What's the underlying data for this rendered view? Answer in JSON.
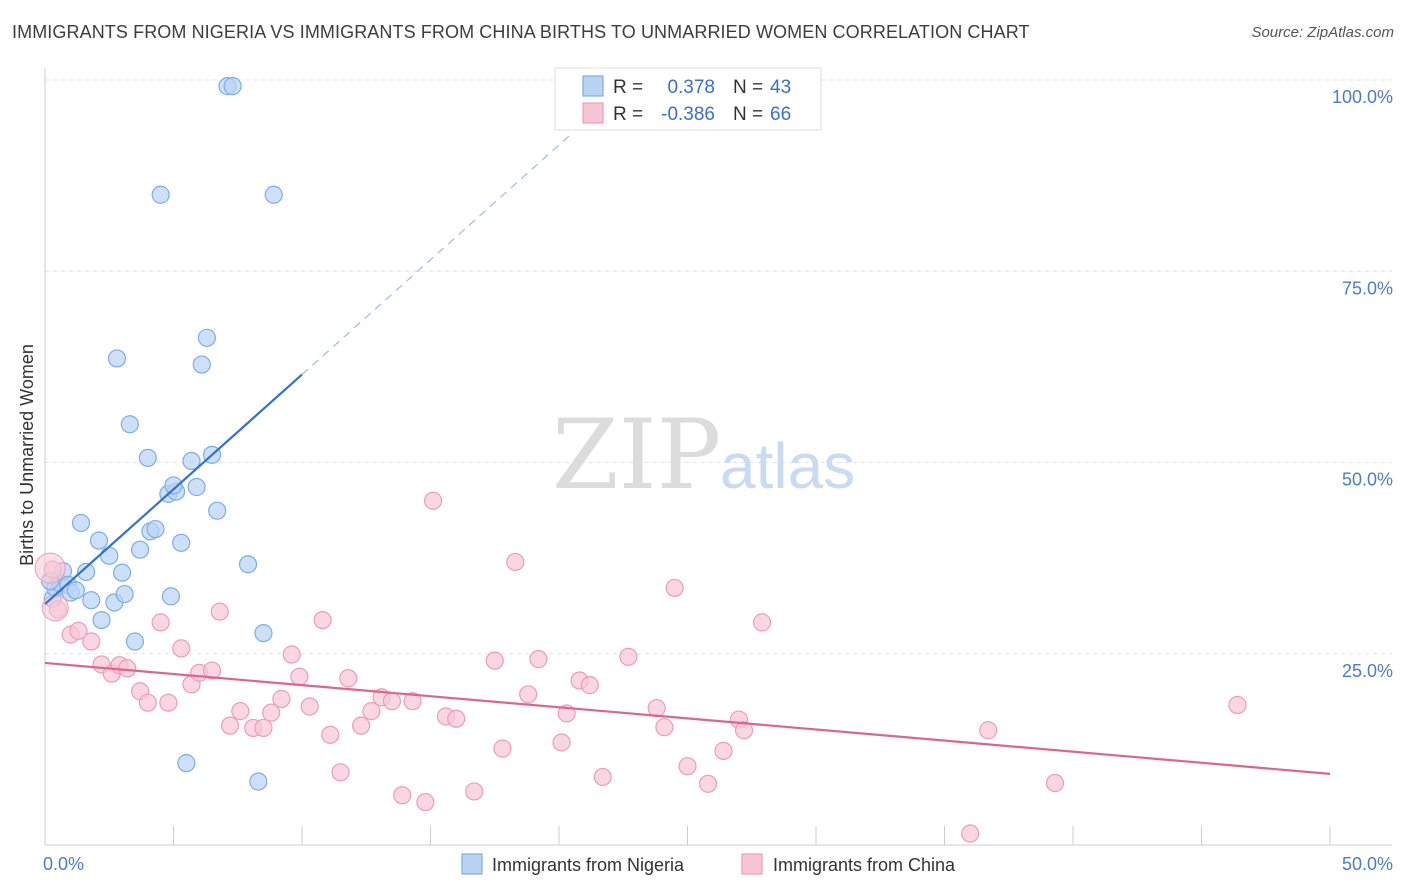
{
  "header": {
    "title": "IMMIGRANTS FROM NIGERIA VS IMMIGRANTS FROM CHINA BIRTHS TO UNMARRIED WOMEN CORRELATION CHART",
    "source": "Source: ZipAtlas.com"
  },
  "watermark": {
    "zip": "ZIP",
    "atlas": "atlas"
  },
  "legend": {
    "nigeria": {
      "r_label": "R =",
      "r_value": "0.378",
      "n_label": "N =",
      "n_value": "43"
    },
    "china": {
      "r_label": "R =",
      "r_value": "-0.386",
      "n_label": "N =",
      "n_value": "66"
    }
  },
  "chart_data": {
    "type": "scatter",
    "xlabel": "",
    "ylabel": "Births to Unmarried Women",
    "xlim": [
      0,
      50
    ],
    "ylim": [
      0,
      100
    ],
    "x_ticks": [
      {
        "value": 0,
        "label": "0.0%"
      },
      {
        "value": 50,
        "label": "50.0%"
      }
    ],
    "y_ticks": [
      {
        "value": 25,
        "label": "25.0%"
      },
      {
        "value": 50,
        "label": "50.0%"
      },
      {
        "value": 75,
        "label": "75.0%"
      },
      {
        "value": 100,
        "label": "100.0%"
      }
    ],
    "grid": true,
    "legend_position": "top-center",
    "series": [
      {
        "name": "Immigrants from Nigeria",
        "color": "#7aaee8",
        "fill": "#b9d3f3",
        "r": 0.378,
        "n": 43,
        "trend": {
          "x0": 0,
          "y0": 31.5,
          "x1": 10,
          "y1": 61.5,
          "dash_to_x": 20.5,
          "dash_to_y": 93
        },
        "points": [
          [
            0.3,
            32.2
          ],
          [
            0.4,
            33.6
          ],
          [
            0.6,
            34.2
          ],
          [
            0.7,
            35.8
          ],
          [
            0.9,
            34.0
          ],
          [
            1.0,
            33.0
          ],
          [
            1.2,
            33.3
          ],
          [
            1.4,
            42.1
          ],
          [
            1.6,
            35.7
          ],
          [
            1.8,
            32.0
          ],
          [
            2.1,
            39.8
          ],
          [
            2.2,
            29.4
          ],
          [
            2.5,
            37.8
          ],
          [
            2.7,
            31.7
          ],
          [
            2.8,
            63.6
          ],
          [
            3.0,
            35.6
          ],
          [
            3.1,
            32.8
          ],
          [
            3.3,
            55.0
          ],
          [
            3.5,
            26.6
          ],
          [
            3.7,
            38.6
          ],
          [
            4.0,
            50.6
          ],
          [
            4.1,
            41.0
          ],
          [
            4.3,
            41.3
          ],
          [
            4.5,
            85.0
          ],
          [
            4.8,
            45.9
          ],
          [
            4.9,
            32.5
          ],
          [
            5.1,
            46.2
          ],
          [
            5.0,
            47.0
          ],
          [
            5.3,
            39.5
          ],
          [
            5.5,
            10.7
          ],
          [
            5.7,
            50.2
          ],
          [
            5.9,
            46.8
          ],
          [
            6.1,
            62.8
          ],
          [
            6.3,
            66.3
          ],
          [
            6.5,
            51.0
          ],
          [
            6.7,
            43.7
          ],
          [
            7.1,
            99.2
          ],
          [
            7.3,
            99.2
          ],
          [
            7.9,
            36.7
          ],
          [
            8.3,
            8.3
          ],
          [
            8.5,
            27.7
          ],
          [
            8.9,
            85.0
          ],
          [
            0.2,
            34.5
          ]
        ]
      },
      {
        "name": "Immigrants from China",
        "color": "#ee9bb8",
        "fill": "#f7c6d6",
        "r": -0.386,
        "n": 66,
        "trend": {
          "x0": 0,
          "y0": 23.8,
          "x1": 50,
          "y1": 9.3
        },
        "points": [
          [
            0.3,
            36.0
          ],
          [
            0.5,
            30.8
          ],
          [
            1.0,
            27.5
          ],
          [
            1.3,
            28.0
          ],
          [
            1.8,
            26.6
          ],
          [
            2.2,
            23.6
          ],
          [
            2.6,
            22.4
          ],
          [
            2.9,
            23.5
          ],
          [
            3.2,
            23.1
          ],
          [
            3.7,
            20.1
          ],
          [
            4.0,
            18.6
          ],
          [
            4.5,
            29.1
          ],
          [
            4.8,
            18.6
          ],
          [
            5.3,
            25.7
          ],
          [
            5.7,
            21.0
          ],
          [
            6.0,
            22.5
          ],
          [
            6.5,
            22.8
          ],
          [
            6.8,
            30.5
          ],
          [
            7.2,
            15.6
          ],
          [
            7.6,
            17.5
          ],
          [
            8.1,
            15.3
          ],
          [
            8.5,
            15.3
          ],
          [
            8.8,
            17.3
          ],
          [
            9.2,
            19.1
          ],
          [
            9.6,
            24.9
          ],
          [
            9.9,
            22.0
          ],
          [
            10.3,
            18.1
          ],
          [
            10.8,
            29.4
          ],
          [
            11.1,
            14.4
          ],
          [
            11.5,
            9.5
          ],
          [
            11.8,
            21.8
          ],
          [
            12.3,
            15.6
          ],
          [
            12.7,
            17.5
          ],
          [
            13.1,
            19.3
          ],
          [
            13.5,
            18.8
          ],
          [
            13.9,
            6.5
          ],
          [
            14.3,
            18.8
          ],
          [
            14.8,
            5.6
          ],
          [
            15.1,
            45.0
          ],
          [
            15.6,
            16.8
          ],
          [
            16.0,
            16.5
          ],
          [
            16.7,
            7.0
          ],
          [
            17.5,
            24.1
          ],
          [
            17.8,
            12.6
          ],
          [
            18.3,
            37.0
          ],
          [
            18.8,
            19.7
          ],
          [
            19.2,
            24.3
          ],
          [
            20.1,
            13.4
          ],
          [
            20.3,
            17.2
          ],
          [
            20.8,
            21.5
          ],
          [
            21.2,
            20.9
          ],
          [
            21.7,
            8.9
          ],
          [
            22.7,
            24.6
          ],
          [
            23.8,
            17.9
          ],
          [
            24.1,
            15.4
          ],
          [
            24.5,
            33.6
          ],
          [
            25.0,
            10.3
          ],
          [
            25.8,
            8.0
          ],
          [
            26.4,
            12.3
          ],
          [
            27.0,
            16.4
          ],
          [
            27.2,
            15.0
          ],
          [
            27.9,
            29.1
          ],
          [
            36.0,
            1.5
          ],
          [
            36.7,
            15.0
          ],
          [
            39.3,
            8.1
          ],
          [
            46.4,
            18.3
          ]
        ]
      }
    ]
  }
}
